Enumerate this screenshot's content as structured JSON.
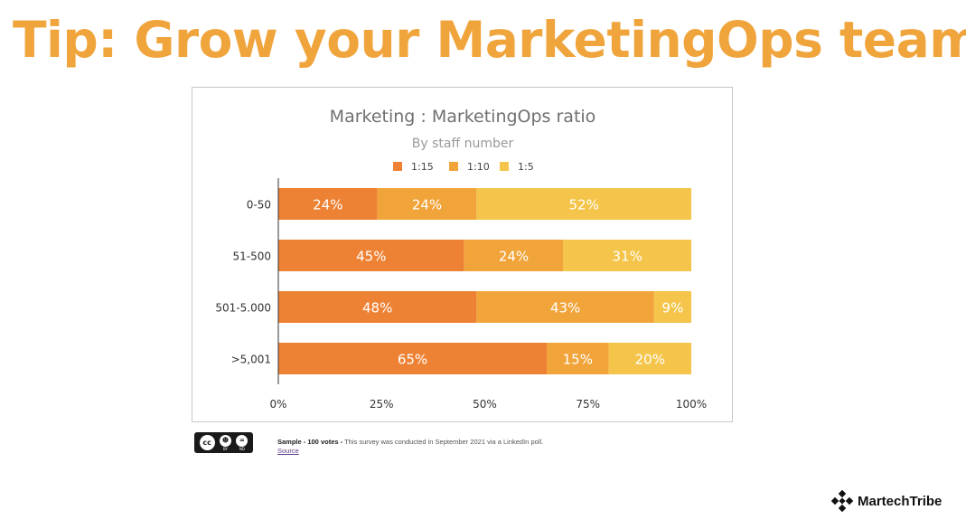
{
  "slide": {
    "title": "Tip: Grow your MarketingOps team"
  },
  "chart_data": {
    "type": "bar",
    "orientation": "horizontal",
    "stacked": true,
    "title": "Marketing : MarketingOps ratio",
    "subtitle": "By staff number",
    "categories": [
      "0-50",
      "51-500",
      "501-5.000",
      ">5,001"
    ],
    "series": [
      {
        "name": "1:15",
        "values": [
          24,
          45,
          48,
          65
        ],
        "color": "#ee8234"
      },
      {
        "name": "1:10",
        "values": [
          24,
          24,
          43,
          15
        ],
        "color": "#f1a43a"
      },
      {
        "name": "1:5",
        "values": [
          52,
          31,
          9,
          20
        ],
        "color": "#f4c54a"
      }
    ],
    "xlim": [
      0,
      100
    ],
    "x_ticks": [
      "0%",
      "25%",
      "50%",
      "75%",
      "100%"
    ],
    "value_suffix": "%",
    "legend": "top",
    "grid": false
  },
  "footer": {
    "cc_icons": [
      "cc-icon",
      "by-icon",
      "nd-icon"
    ],
    "cc_labels": {
      "cc": "cc",
      "by": "BY",
      "nd": "ND"
    },
    "sample_bold": "Sample - 100 votes -",
    "sample_text": " This survey was conducted in September 2021 via a LinkedIn poll.",
    "source_link": "Source"
  },
  "logo": {
    "text": "MartechTribe"
  }
}
